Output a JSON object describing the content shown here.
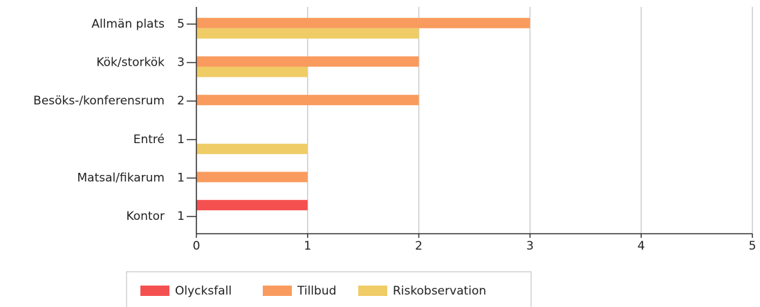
{
  "chart_data": {
    "type": "bar",
    "orientation": "horizontal",
    "categories": [
      "Allmän plats",
      "Kök/storkök",
      "Besöks-/konferensrum",
      "Entré",
      "Matsal/fikarum",
      "Kontor"
    ],
    "totals": [
      5,
      3,
      2,
      1,
      1,
      1
    ],
    "series": [
      {
        "name": "Olycksfall",
        "color": "#f55050",
        "values": [
          0,
          0,
          0,
          0,
          0,
          1
        ]
      },
      {
        "name": "Tillbud",
        "color": "#f99b5e",
        "values": [
          3,
          2,
          2,
          0,
          1,
          0
        ]
      },
      {
        "name": "Riskobservation",
        "color": "#f0cc66",
        "values": [
          2,
          1,
          0,
          1,
          0,
          0
        ]
      }
    ],
    "xlim": [
      0,
      5
    ],
    "xticks": [
      0,
      1,
      2,
      3,
      4,
      5
    ],
    "grid": true
  }
}
